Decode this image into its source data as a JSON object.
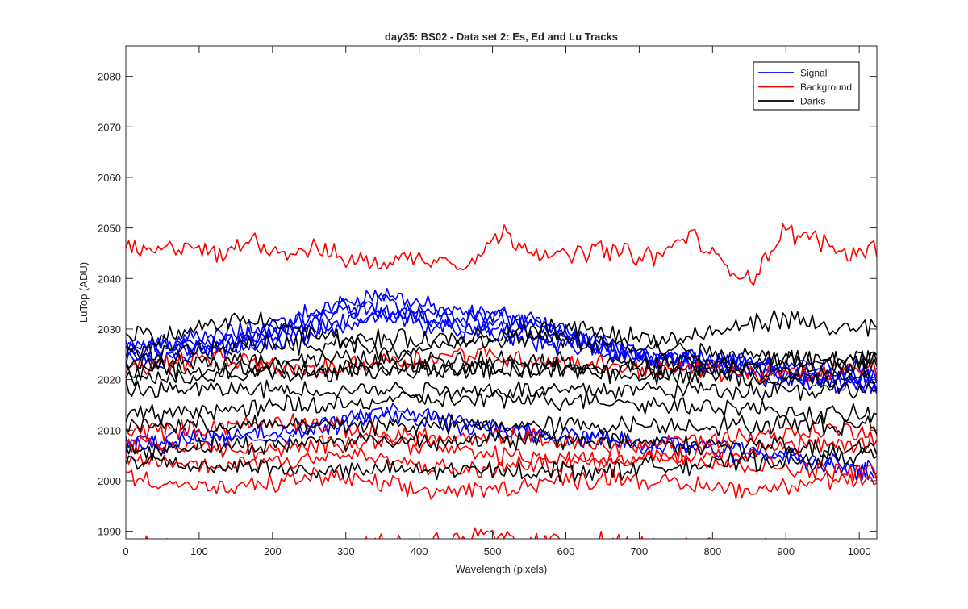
{
  "chart_data": {
    "type": "line",
    "title": "day35: BS02 - Data set 2: Es, Ed and Lu Tracks",
    "xlabel": "Wavelength (pixels)",
    "ylabel": "LuTop (ADU)",
    "xlim": [
      0,
      1024
    ],
    "ylim": [
      1988.5,
      2086
    ],
    "xticks": [
      0,
      100,
      200,
      300,
      400,
      500,
      600,
      700,
      800,
      900,
      1000
    ],
    "yticks": [
      1990,
      2000,
      2010,
      2020,
      2030,
      2040,
      2050,
      2060,
      2070,
      2080
    ],
    "grid": false,
    "legend": {
      "location": "top-right",
      "entries": [
        "Signal",
        "Background",
        "Darks"
      ]
    },
    "colors": {
      "Signal": "#0000ff",
      "Background": "#ff0000",
      "Darks": "#000000"
    },
    "x_step": 4,
    "series": [
      {
        "group": "Signal",
        "x_range": [
          0,
          1024
        ],
        "noise": 1.6,
        "values": [
          2026,
          2027,
          2027,
          2028,
          2029,
          2031,
          2033,
          2036,
          2037,
          2035,
          2033,
          2033,
          2032,
          2030,
          2028,
          2026,
          2025,
          2024,
          2023,
          2022,
          2021,
          2020,
          2020,
          2019
        ]
      },
      {
        "group": "Signal",
        "x_range": [
          0,
          1024
        ],
        "noise": 1.6,
        "values": [
          2025,
          2026,
          2026,
          2027,
          2027,
          2030,
          2032,
          2034,
          2035,
          2034,
          2033,
          2033,
          2033,
          2031,
          2028,
          2026,
          2025,
          2024,
          2023,
          2023,
          2022,
          2021,
          2021,
          2021
        ]
      },
      {
        "group": "Signal",
        "x_range": [
          0,
          1024
        ],
        "noise": 1.6,
        "values": [
          2024,
          2024,
          2025,
          2026,
          2027,
          2028,
          2030,
          2031,
          2033,
          2033,
          2032,
          2032,
          2031,
          2030,
          2028,
          2026,
          2024,
          2024,
          2024,
          2023,
          2023,
          2023,
          2022,
          2022
        ]
      },
      {
        "group": "Signal",
        "x_range": [
          0,
          1024
        ],
        "noise": 1.6,
        "values": [
          2027,
          2027,
          2028,
          2029,
          2030,
          2032,
          2034,
          2034,
          2033,
          2032,
          2031,
          2030,
          2029,
          2028,
          2027,
          2025,
          2024,
          2024,
          2024,
          2023,
          2022,
          2021,
          2020,
          2020
        ]
      },
      {
        "group": "Signal",
        "x_range": [
          0,
          1024
        ],
        "noise": 1.6,
        "values": [
          2025,
          2025,
          2026,
          2026,
          2028,
          2029,
          2030,
          2032,
          2033,
          2031,
          2030,
          2029,
          2028,
          2027,
          2026,
          2025,
          2024,
          2023,
          2022,
          2021,
          2020,
          2019,
          2019,
          2018
        ]
      },
      {
        "group": "Signal",
        "x_range": [
          0,
          1024
        ],
        "noise": 1.5,
        "values": [
          2006,
          2007,
          2008,
          2008,
          2008,
          2009,
          2010,
          2012,
          2014,
          2013,
          2012,
          2011,
          2010,
          2009,
          2008,
          2008,
          2007,
          2007,
          2007,
          2006,
          2005,
          2004,
          2003,
          2001
        ]
      },
      {
        "group": "Signal",
        "x_range": [
          0,
          1024
        ],
        "noise": 1.5,
        "values": [
          2008,
          2008,
          2009,
          2009,
          2010,
          2010,
          2011,
          2012,
          2013,
          2012,
          2011,
          2010,
          2010,
          2009,
          2009,
          2008,
          2007,
          2007,
          2006,
          2005,
          2005,
          2004,
          2003,
          2002
        ]
      },
      {
        "group": "Background",
        "x_range": [
          0,
          1024
        ],
        "noise": 1.6,
        "values": [
          2046,
          2045,
          2047,
          2044,
          2048,
          2045,
          2046,
          2044,
          2043,
          2044,
          2044,
          2043,
          2049,
          2046,
          2044,
          2046,
          2045,
          2044,
          2049,
          2043,
          2040,
          2049,
          2048,
          2045,
          2046
        ]
      },
      {
        "group": "Background",
        "x_range": [
          0,
          1024
        ],
        "noise": 1.6,
        "values": [
          2023,
          2023,
          2024,
          2024,
          2023,
          2022,
          2022,
          2023,
          2024,
          2024,
          2025,
          2025,
          2024,
          2024,
          2023,
          2023,
          2022,
          2022,
          2022,
          2021,
          2021,
          2021,
          2022,
          2022
        ]
      },
      {
        "group": "Background",
        "x_range": [
          0,
          1024
        ],
        "noise": 1.5,
        "values": [
          2010,
          2010,
          2010,
          2011,
          2011,
          2012,
          2011,
          2010,
          2009,
          2009,
          2008,
          2008,
          2009,
          2008,
          2007,
          2007,
          2007,
          2008,
          2008,
          2009,
          2009,
          2010,
          2010,
          2010
        ]
      },
      {
        "group": "Background",
        "x_range": [
          0,
          1024
        ],
        "noise": 1.5,
        "values": [
          2007,
          2007,
          2007,
          2006,
          2006,
          2006,
          2007,
          2008,
          2008,
          2007,
          2006,
          2005,
          2005,
          2004,
          2004,
          2004,
          2005,
          2005,
          2006,
          2006,
          2007,
          2007,
          2007,
          2008
        ]
      },
      {
        "group": "Background",
        "x_range": [
          0,
          1024
        ],
        "noise": 1.5,
        "values": [
          2001,
          2000,
          1999,
          1998,
          1999,
          2000,
          2001,
          2000,
          1999,
          1998,
          1998,
          1998,
          1999,
          2000,
          2000,
          2001,
          2000,
          1999,
          1999,
          1998,
          1999,
          2000,
          2000,
          1999
        ]
      },
      {
        "group": "Background",
        "x_range": [
          0,
          1024
        ],
        "noise": 1.5,
        "values": [
          2004,
          2004,
          2003,
          2003,
          2004,
          2004,
          2005,
          2005,
          2004,
          2003,
          2002,
          2002,
          2003,
          2003,
          2004,
          2004,
          2005,
          2005,
          2004,
          2003,
          2003,
          2002,
          2002,
          2002
        ]
      },
      {
        "group": "Background",
        "x_range": [
          0,
          1024
        ],
        "noise": 1.5,
        "values": [
          1987,
          1987,
          1987,
          1987,
          1987,
          1987,
          1987,
          1987,
          1988,
          1988,
          1989,
          1989,
          1988,
          1988,
          1988,
          1988,
          1987,
          1987,
          1987,
          1987,
          1987,
          1987,
          1987,
          1987
        ]
      },
      {
        "group": "Darks",
        "x_range": [
          0,
          1024
        ],
        "noise": 1.6,
        "values": [
          2030,
          2028,
          2030,
          2031,
          2032,
          2030,
          2029,
          2027,
          2025,
          2026,
          2027,
          2028,
          2029,
          2030,
          2030,
          2029,
          2028,
          2028,
          2029,
          2031,
          2032,
          2031,
          2030,
          2030
        ]
      },
      {
        "group": "Darks",
        "x_range": [
          0,
          1024
        ],
        "noise": 1.5,
        "values": [
          2025,
          2025,
          2026,
          2026,
          2027,
          2027,
          2027,
          2028,
          2028,
          2028,
          2028,
          2028,
          2028,
          2028,
          2027,
          2027,
          2026,
          2026,
          2025,
          2025,
          2024,
          2024,
          2024,
          2024
        ]
      },
      {
        "group": "Darks",
        "x_range": [
          0,
          1024
        ],
        "noise": 1.5,
        "values": [
          2023,
          2023,
          2023,
          2024,
          2024,
          2024,
          2024,
          2024,
          2024,
          2024,
          2024,
          2024,
          2024,
          2024,
          2023,
          2023,
          2023,
          2023,
          2023,
          2023,
          2024,
          2024,
          2024,
          2025
        ]
      },
      {
        "group": "Darks",
        "x_range": [
          0,
          1024
        ],
        "noise": 1.5,
        "values": [
          2022,
          2022,
          2022,
          2022,
          2022,
          2022,
          2022,
          2022,
          2022,
          2022,
          2022,
          2022,
          2022,
          2022,
          2022,
          2022,
          2022,
          2022,
          2022,
          2022,
          2022,
          2022,
          2022,
          2023
        ]
      },
      {
        "group": "Darks",
        "x_range": [
          0,
          1024
        ],
        "noise": 1.5,
        "values": [
          2020,
          2020,
          2020,
          2021,
          2021,
          2021,
          2021,
          2022,
          2022,
          2022,
          2022,
          2022,
          2022,
          2022,
          2022,
          2021,
          2021,
          2021,
          2021,
          2020,
          2020,
          2020,
          2020,
          2020
        ]
      },
      {
        "group": "Darks",
        "x_range": [
          0,
          1024
        ],
        "noise": 1.5,
        "values": [
          2018,
          2018,
          2018,
          2018,
          2018,
          2018,
          2018,
          2018,
          2018,
          2018,
          2018,
          2018,
          2018,
          2018,
          2018,
          2018,
          2018,
          2018,
          2018,
          2018,
          2018,
          2018,
          2018,
          2018
        ]
      },
      {
        "group": "Darks",
        "x_range": [
          0,
          1024
        ],
        "noise": 1.5,
        "values": [
          2013,
          2013,
          2014,
          2014,
          2014,
          2015,
          2015,
          2015,
          2016,
          2016,
          2016,
          2016,
          2016,
          2016,
          2016,
          2016,
          2015,
          2015,
          2015,
          2014,
          2014,
          2013,
          2013,
          2013
        ]
      },
      {
        "group": "Darks",
        "x_range": [
          0,
          1024
        ],
        "noise": 1.5,
        "values": [
          2011,
          2011,
          2011,
          2011,
          2011,
          2011,
          2011,
          2011,
          2011,
          2011,
          2011,
          2011,
          2011,
          2011,
          2011,
          2011,
          2011,
          2011,
          2011,
          2011,
          2011,
          2011,
          2011,
          2011
        ]
      },
      {
        "group": "Darks",
        "x_range": [
          0,
          1024
        ],
        "noise": 1.5,
        "values": [
          2006,
          2006,
          2007,
          2007,
          2007,
          2007,
          2008,
          2008,
          2008,
          2008,
          2008,
          2008,
          2008,
          2008,
          2008,
          2008,
          2008,
          2007,
          2007,
          2007,
          2007,
          2006,
          2006,
          2006
        ]
      },
      {
        "group": "Darks",
        "x_range": [
          0,
          1024
        ],
        "noise": 1.5,
        "values": [
          2004,
          2004,
          2003,
          2003,
          2003,
          2002,
          2002,
          2002,
          2002,
          2002,
          2002,
          2002,
          2002,
          2002,
          2002,
          2002,
          2003,
          2003,
          2003,
          2004,
          2004,
          2004,
          2005,
          2005
        ]
      }
    ]
  }
}
